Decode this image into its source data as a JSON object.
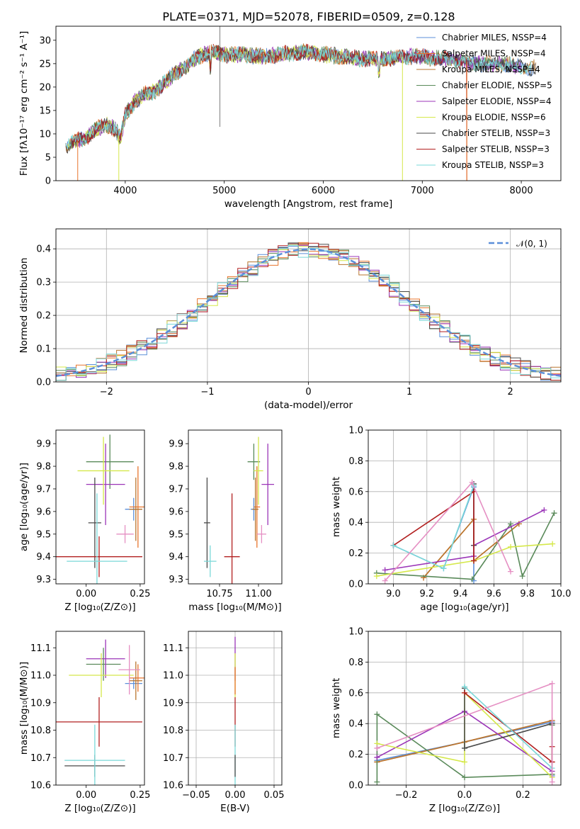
{
  "chart_data": [
    {
      "id": "spectrum",
      "type": "line",
      "title": "PLATE=0371, MJD=52078, FIBERID=0509, z=0.128",
      "xlabel": "wavelength [Angstrom, rest frame]",
      "ylabel": "Flux [fλ10⁻¹⁷ erg cm⁻² s⁻¹ A⁻¹]",
      "xlim": [
        3300,
        8400
      ],
      "ylim": [
        0,
        33
      ],
      "xticks": [
        4000,
        5000,
        6000,
        7000,
        8000
      ],
      "yticks": [
        0,
        5,
        10,
        15,
        20,
        25,
        30
      ],
      "grid": false,
      "legend_position": "top-right",
      "spectrum_points": [
        [
          3400,
          7.5
        ],
        [
          3500,
          8.5
        ],
        [
          3600,
          9
        ],
        [
          3700,
          11
        ],
        [
          3800,
          12
        ],
        [
          3900,
          11
        ],
        [
          3950,
          9
        ],
        [
          4000,
          14
        ],
        [
          4100,
          17
        ],
        [
          4200,
          18.5
        ],
        [
          4300,
          19
        ],
        [
          4400,
          21
        ],
        [
          4500,
          23
        ],
        [
          4600,
          24
        ],
        [
          4700,
          26
        ],
        [
          4800,
          27
        ],
        [
          4900,
          27.5
        ],
        [
          5000,
          27
        ],
        [
          5200,
          27
        ],
        [
          5400,
          26.5
        ],
        [
          5600,
          27
        ],
        [
          5800,
          27.5
        ],
        [
          6000,
          27
        ],
        [
          6200,
          26.5
        ],
        [
          6400,
          26
        ],
        [
          6600,
          26
        ],
        [
          6800,
          26.5
        ],
        [
          7000,
          26.5
        ],
        [
          7200,
          26
        ],
        [
          7400,
          25.5
        ],
        [
          7600,
          25
        ],
        [
          7800,
          25
        ],
        [
          8000,
          24.5
        ],
        [
          8150,
          24
        ]
      ],
      "series": [
        {
          "name": "Chabrier MILES, N_SSP=4",
          "color": "#5b8fd9"
        },
        {
          "name": "Salpeter MILES, N_SSP=4",
          "color": "#e8752d"
        },
        {
          "name": "Kroupa MILES, N_SSP=4",
          "color": "#b8762f"
        },
        {
          "name": "Chabrier ELODIE, N_SSP=5",
          "color": "#5a8a5a"
        },
        {
          "name": "Salpeter ELODIE, N_SSP=4",
          "color": "#9b35b8"
        },
        {
          "name": "Kroupa ELODIE, N_SSP=6",
          "color": "#d5e84a"
        },
        {
          "name": "Chabrier STELIB, N_SSP=3",
          "color": "#4a4a4a"
        },
        {
          "name": "Salpeter STELIB, N_SSP=3",
          "color": "#b22020"
        },
        {
          "name": "Kroupa STELIB, N_SSP=3",
          "color": "#7ad8d8"
        }
      ]
    },
    {
      "id": "residuals",
      "type": "line",
      "xlabel": "(data-model)/error",
      "ylabel": "Normed distribution",
      "xlim": [
        -2.5,
        2.5
      ],
      "ylim": [
        0,
        0.46
      ],
      "xticks": [
        -2,
        -1,
        0,
        1,
        2
      ],
      "yticks": [
        0.0,
        0.1,
        0.2,
        0.3,
        0.4
      ],
      "grid": true,
      "legend_position": "top-right",
      "gaussian_label": "𝒩(0, 1)",
      "gaussian_color": "#5b8fd9"
    },
    {
      "id": "age_vs_z",
      "type": "scatter",
      "xlabel": "Z [log₁₀(Z/Z⊙)]",
      "ylabel": "age  [log₁₀(age/yr)]",
      "xlim": [
        -0.14,
        0.27
      ],
      "ylim": [
        9.28,
        9.96
      ],
      "xticks": [
        0.0,
        0.25
      ],
      "yticks": [
        9.3,
        9.4,
        9.5,
        9.6,
        9.7,
        9.8,
        9.9
      ],
      "points": [
        {
          "x": 0.22,
          "y": 9.61,
          "xerr": 0.04,
          "yerr": 0.05,
          "color": "#5b8fd9"
        },
        {
          "x": 0.24,
          "y": 9.62,
          "xerr": 0.04,
          "yerr": 0.18,
          "color": "#e8752d"
        },
        {
          "x": 0.23,
          "y": 9.61,
          "xerr": 0.03,
          "yerr": 0.14,
          "color": "#b8762f"
        },
        {
          "x": 0.11,
          "y": 9.82,
          "xerr": 0.11,
          "yerr": 0.12,
          "color": "#5a8a5a"
        },
        {
          "x": 0.09,
          "y": 9.72,
          "xerr": 0.09,
          "yerr": 0.18,
          "color": "#9b35b8"
        },
        {
          "x": 0.08,
          "y": 9.78,
          "xerr": 0.12,
          "yerr": 0.15,
          "color": "#d5e84a"
        },
        {
          "x": 0.04,
          "y": 9.55,
          "xerr": 0.03,
          "yerr": 0.2,
          "color": "#4a4a4a"
        },
        {
          "x": 0.06,
          "y": 9.4,
          "xerr": 0.2,
          "yerr": 0.09,
          "color": "#b22020"
        },
        {
          "x": 0.05,
          "y": 9.38,
          "xerr": 0.14,
          "yerr": 0.3,
          "color": "#7ad8d8"
        },
        {
          "x": 0.18,
          "y": 9.5,
          "xerr": 0.04,
          "yerr": 0.04,
          "color": "#e58fc3"
        }
      ]
    },
    {
      "id": "age_vs_mass",
      "type": "scatter",
      "xlabel": "mass [log₁₀(M/M⊙)]",
      "xlim": [
        10.55,
        11.15
      ],
      "ylim": [
        9.28,
        9.96
      ],
      "xticks": [
        10.75,
        11.0
      ],
      "yticks": [
        9.3,
        9.4,
        9.5,
        9.6,
        9.7,
        9.8,
        9.9
      ],
      "points": [
        {
          "x": 10.97,
          "y": 9.61,
          "xerr": 0.02,
          "yerr": 0.05,
          "color": "#5b8fd9"
        },
        {
          "x": 10.99,
          "y": 9.62,
          "xerr": 0.02,
          "yerr": 0.18,
          "color": "#e8752d"
        },
        {
          "x": 10.98,
          "y": 9.61,
          "xerr": 0.02,
          "yerr": 0.14,
          "color": "#b8762f"
        },
        {
          "x": 10.97,
          "y": 9.82,
          "xerr": 0.04,
          "yerr": 0.08,
          "color": "#5a8a5a"
        },
        {
          "x": 11.06,
          "y": 9.72,
          "xerr": 0.04,
          "yerr": 0.18,
          "color": "#9b35b8"
        },
        {
          "x": 11.0,
          "y": 9.78,
          "xerr": 0.03,
          "yerr": 0.15,
          "color": "#d5e84a"
        },
        {
          "x": 10.67,
          "y": 9.55,
          "xerr": 0.02,
          "yerr": 0.2,
          "color": "#4a4a4a"
        },
        {
          "x": 10.83,
          "y": 9.4,
          "xerr": 0.05,
          "yerr": 0.28,
          "color": "#b22020"
        },
        {
          "x": 10.69,
          "y": 9.38,
          "xerr": 0.04,
          "yerr": 0.07,
          "color": "#7ad8d8"
        },
        {
          "x": 11.02,
          "y": 9.5,
          "xerr": 0.03,
          "yerr": 0.04,
          "color": "#e58fc3"
        }
      ]
    },
    {
      "id": "massweight_vs_age",
      "type": "line",
      "xlabel": "age  [log₁₀(age/yr)]",
      "ylabel": "mass weight",
      "xlim": [
        8.85,
        10.0
      ],
      "ylim": [
        0.0,
        1.0
      ],
      "xticks": [
        9.0,
        9.2,
        9.4,
        9.6,
        9.8,
        10.0
      ],
      "yticks": [
        0.0,
        0.2,
        0.4,
        0.6,
        0.8,
        1.0
      ],
      "grid": true,
      "series": [
        {
          "color": "#5b8fd9",
          "points": [
            [
              9.0,
              0.25
            ],
            [
              9.3,
              0.1
            ],
            [
              9.48,
              0.63
            ],
            [
              9.48,
              0.02
            ]
          ]
        },
        {
          "color": "#e8752d",
          "points": [
            [
              9.18,
              0.04
            ],
            [
              9.48,
              0.42
            ],
            [
              9.48,
              0.15
            ],
            [
              9.75,
              0.39
            ]
          ]
        },
        {
          "color": "#b8762f",
          "points": [
            [
              9.18,
              0.04
            ],
            [
              9.48,
              0.42
            ],
            [
              9.48,
              0.15
            ],
            [
              9.75,
              0.39
            ]
          ]
        },
        {
          "color": "#5a8a5a",
          "points": [
            [
              8.9,
              0.07
            ],
            [
              9.47,
              0.03
            ],
            [
              9.7,
              0.39
            ],
            [
              9.77,
              0.05
            ],
            [
              9.96,
              0.46
            ]
          ]
        },
        {
          "color": "#9b35b8",
          "points": [
            [
              8.95,
              0.09
            ],
            [
              9.48,
              0.18
            ],
            [
              9.48,
              0.25
            ],
            [
              9.9,
              0.48
            ]
          ]
        },
        {
          "color": "#d5e84a",
          "points": [
            [
              8.9,
              0.05
            ],
            [
              9.48,
              0.15
            ],
            [
              9.7,
              0.24
            ],
            [
              9.95,
              0.26
            ]
          ]
        },
        {
          "color": "#4a4a4a",
          "points": [
            [
              9.48,
              0.65
            ],
            [
              9.48,
              0.25
            ]
          ]
        },
        {
          "color": "#b22020",
          "points": [
            [
              9.0,
              0.25
            ],
            [
              9.48,
              0.6
            ],
            [
              9.48,
              0.15
            ]
          ]
        },
        {
          "color": "#7ad8d8",
          "points": [
            [
              9.0,
              0.25
            ],
            [
              9.3,
              0.1
            ],
            [
              9.48,
              0.64
            ]
          ]
        },
        {
          "color": "#e58fc3",
          "points": [
            [
              8.95,
              0.02
            ],
            [
              9.47,
              0.66
            ],
            [
              9.7,
              0.08
            ]
          ]
        }
      ]
    },
    {
      "id": "mass_vs_z",
      "type": "scatter",
      "xlabel": "Z [log₁₀(Z/Z⊙)]",
      "ylabel": "mass [log₁₀(M/M⊙)]",
      "xlim": [
        -0.14,
        0.27
      ],
      "ylim": [
        10.6,
        11.16
      ],
      "xticks": [
        0.0,
        0.25
      ],
      "yticks": [
        10.6,
        10.7,
        10.8,
        10.9,
        11.0,
        11.1
      ],
      "points": [
        {
          "x": 0.22,
          "y": 10.97,
          "xerr": 0.04,
          "yerr": 0.02,
          "color": "#5b8fd9"
        },
        {
          "x": 0.24,
          "y": 10.99,
          "xerr": 0.04,
          "yerr": 0.05,
          "color": "#e8752d"
        },
        {
          "x": 0.23,
          "y": 10.98,
          "xerr": 0.03,
          "yerr": 0.07,
          "color": "#b8762f"
        },
        {
          "x": 0.08,
          "y": 11.04,
          "xerr": 0.08,
          "yerr": 0.06,
          "color": "#5a8a5a"
        },
        {
          "x": 0.09,
          "y": 11.06,
          "xerr": 0.09,
          "yerr": 0.07,
          "color": "#9b35b8"
        },
        {
          "x": 0.07,
          "y": 11.0,
          "xerr": 0.15,
          "yerr": 0.08,
          "color": "#d5e84a"
        },
        {
          "x": 0.04,
          "y": 10.67,
          "xerr": 0.14,
          "yerr": 0.04,
          "color": "#4a4a4a"
        },
        {
          "x": 0.06,
          "y": 10.83,
          "xerr": 0.2,
          "yerr": 0.09,
          "color": "#b22020"
        },
        {
          "x": 0.04,
          "y": 10.69,
          "xerr": 0.14,
          "yerr": 0.13,
          "color": "#7ad8d8"
        },
        {
          "x": 0.2,
          "y": 11.02,
          "xerr": 0.05,
          "yerr": 0.09,
          "color": "#e58fc3"
        }
      ]
    },
    {
      "id": "mass_vs_ebv",
      "type": "scatter",
      "xlabel": "E(B-V)",
      "xlim": [
        -0.06,
        0.06
      ],
      "ylim": [
        10.6,
        11.16
      ],
      "xticks": [
        -0.05,
        0.0,
        0.05
      ],
      "yticks": [
        10.6,
        10.7,
        10.8,
        10.9,
        11.0,
        11.1
      ],
      "grid": true,
      "points": [
        {
          "x": 0.0,
          "y": 11.06,
          "yerr": 0.08,
          "color": "#9b35b8"
        },
        {
          "x": 0.0,
          "y": 11.0,
          "yerr": 0.08,
          "color": "#d5e84a"
        },
        {
          "x": 0.0,
          "y": 10.98,
          "yerr": 0.05,
          "color": "#e8752d"
        },
        {
          "x": 0.0,
          "y": 10.83,
          "yerr": 0.09,
          "color": "#b22020"
        },
        {
          "x": 0.0,
          "y": 10.69,
          "yerr": 0.13,
          "color": "#7ad8d8"
        },
        {
          "x": 0.0,
          "y": 10.67,
          "yerr": 0.04,
          "color": "#4a4a4a"
        }
      ]
    },
    {
      "id": "massweight_vs_z",
      "type": "line",
      "xlabel": "Z [log₁₀(Z/Z⊙)]",
      "ylabel": "mass weight",
      "xlim": [
        -0.33,
        0.33
      ],
      "ylim": [
        0.0,
        1.0
      ],
      "xticks": [
        -0.2,
        0.0,
        0.2
      ],
      "yticks": [
        0.0,
        0.2,
        0.4,
        0.6,
        0.8,
        1.0
      ],
      "grid": true,
      "series": [
        {
          "color": "#5b8fd9",
          "points": [
            [
              -0.3,
              0.16
            ],
            [
              0.0,
              0.28
            ],
            [
              0.3,
              0.41
            ],
            [
              0.3,
              0.06
            ]
          ]
        },
        {
          "color": "#e8752d",
          "points": [
            [
              -0.3,
              0.15
            ],
            [
              0.0,
              0.28
            ],
            [
              0.3,
              0.42
            ],
            [
              0.3,
              0.15
            ]
          ]
        },
        {
          "color": "#b8762f",
          "points": [
            [
              -0.3,
              0.15
            ],
            [
              0.0,
              0.28
            ],
            [
              0.3,
              0.42
            ]
          ]
        },
        {
          "color": "#5a8a5a",
          "points": [
            [
              -0.3,
              0.02
            ],
            [
              -0.3,
              0.46
            ],
            [
              0.0,
              0.05
            ],
            [
              0.3,
              0.07
            ],
            [
              0.3,
              0.39
            ]
          ]
        },
        {
          "color": "#9b35b8",
          "points": [
            [
              -0.3,
              0.18
            ],
            [
              0.0,
              0.48
            ],
            [
              0.3,
              0.09
            ]
          ]
        },
        {
          "color": "#d5e84a",
          "points": [
            [
              -0.3,
              0.27
            ],
            [
              0.0,
              0.15
            ],
            [
              0.0,
              0.6
            ],
            [
              0.3,
              0.05
            ]
          ]
        },
        {
          "color": "#4a4a4a",
          "points": [
            [
              0.0,
              0.63
            ],
            [
              0.0,
              0.24
            ],
            [
              0.3,
              0.4
            ]
          ]
        },
        {
          "color": "#b22020",
          "points": [
            [
              0.0,
              0.6
            ],
            [
              0.3,
              0.15
            ],
            [
              0.3,
              0.25
            ]
          ]
        },
        {
          "color": "#7ad8d8",
          "points": [
            [
              0.0,
              0.64
            ],
            [
              0.3,
              0.11
            ]
          ]
        },
        {
          "color": "#e58fc3",
          "points": [
            [
              -0.3,
              0.24
            ],
            [
              0.3,
              0.66
            ],
            [
              0.3,
              0.02
            ]
          ]
        }
      ]
    }
  ]
}
